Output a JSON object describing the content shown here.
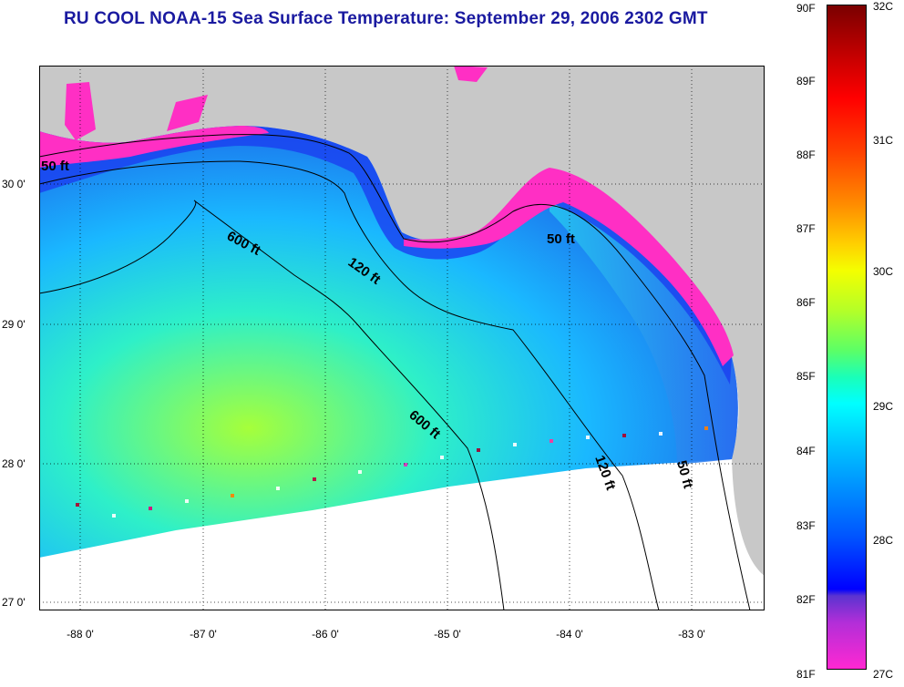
{
  "title": "RU COOL  NOAA-15  Sea Surface Temperature:  September 29, 2006 2302 GMT",
  "map": {
    "latitude_labels": [
      "30 0'",
      "29 0'",
      "28 0'",
      "27 0'"
    ],
    "longitude_labels": [
      "-88 0'",
      "-87 0'",
      "-86 0'",
      "-85 0'",
      "-84 0'",
      "-83 0'"
    ],
    "contour_labels": [
      "50 ft",
      "600 ft",
      "120 ft",
      "50 ft",
      "600 ft",
      "120 ft",
      "50 ft"
    ]
  },
  "colorbar": {
    "fahrenheit_labels": [
      "90F",
      "89F",
      "88F",
      "87F",
      "86F",
      "85F",
      "84F",
      "83F",
      "82F",
      "81F"
    ],
    "celsius_labels": [
      "32C",
      "31C",
      "30C",
      "29C",
      "28C",
      "27C"
    ],
    "range_f": [
      81,
      90
    ],
    "range_c": [
      27,
      32
    ]
  },
  "colors": {
    "title": "#1a1aa0",
    "land": "#c8c8c8",
    "no_data": "#ffffff",
    "warm_scale_top": "#7a0000",
    "cool_scale_bottom": "#ff33cc"
  }
}
